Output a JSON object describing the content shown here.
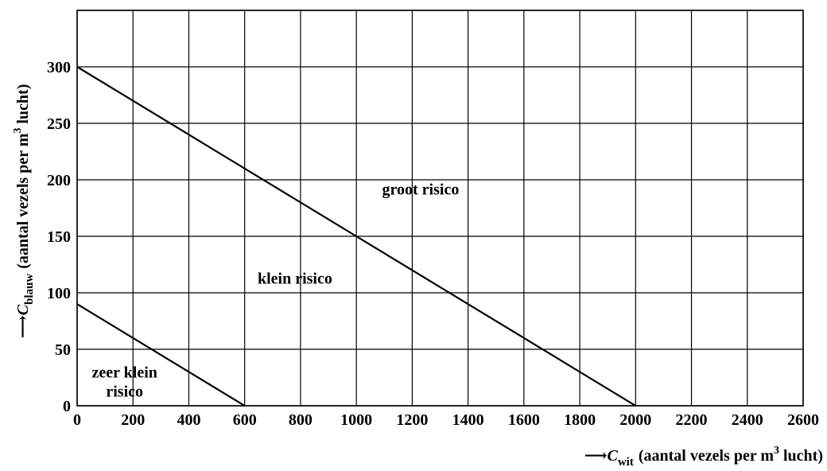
{
  "chart_data": {
    "type": "line",
    "x_axis": {
      "variable": "C",
      "variable_subscript": "wit",
      "label": "(aantal vezels per m",
      "label_sup": "3",
      "label_end": " lucht)",
      "arrow": "⟶",
      "range": [
        0,
        2600
      ],
      "ticks": [
        0,
        200,
        400,
        600,
        800,
        1000,
        1200,
        1400,
        1600,
        1800,
        2000,
        2200,
        2400,
        2600
      ]
    },
    "y_axis": {
      "variable": "C",
      "variable_subscript": "blauw",
      "label": "(aantal vezels per m",
      "label_sup": "3",
      "label_end": " lucht)",
      "arrow": "⟶",
      "range": [
        0,
        350
      ],
      "ticks": [
        0,
        50,
        100,
        150,
        200,
        250,
        300
      ],
      "grid_lines": [
        0,
        50,
        100,
        150,
        200,
        250,
        300,
        350
      ]
    },
    "grid": true,
    "series": [
      {
        "points": [
          [
            0,
            90
          ],
          [
            600,
            0
          ]
        ]
      },
      {
        "points": [
          [
            0,
            300
          ],
          [
            2000,
            0
          ]
        ]
      }
    ],
    "region_labels": [
      {
        "lines": [
          "zeer klein",
          "risico"
        ],
        "x": 170,
        "y": 25
      },
      {
        "lines": [
          "klein risico"
        ],
        "x": 780,
        "y": 108
      },
      {
        "lines": [
          "groot risico"
        ],
        "x": 1230,
        "y": 187
      }
    ]
  }
}
